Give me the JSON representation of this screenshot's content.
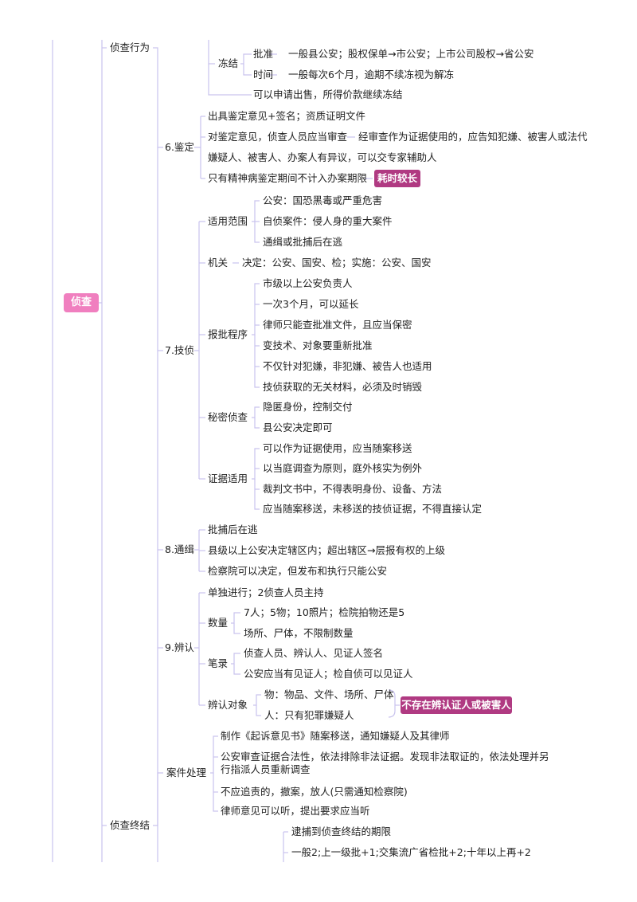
{
  "root": "侦查",
  "branches": {
    "zhencha_xingwei": "侦查行为",
    "zhencha_zhongjie": "侦查终结"
  },
  "dongjie": {
    "label": "冻结",
    "pizhun_label": "批准",
    "pizhun_text": "一般县公安；股权保单→市公安；上市公司股权→省公安",
    "shijian_label": "时间",
    "shijian_text": "一般每次6个月，逾期不续冻视为解冻",
    "chushou": "可以申请出售，所得价款继续冻结"
  },
  "jianding": {
    "label": "6.鉴定",
    "item1": "出具鉴定意见+签名；资质证明文件",
    "item2_head": "对鉴定意见，侦查人员应当审查",
    "item2_line1": "经审查作为证据使用的，应告知犯嫌、被害人或法代",
    "item2_line2": "嫌疑人、被害人、办案人有异议，可以交专家辅助人",
    "item3": "只有精神病鉴定期间不计入办案期限",
    "note": "耗时较长"
  },
  "jizhen": {
    "label": "7.技侦",
    "shiyong_label": "适用范围",
    "shiyong": [
      "公安：国恐黑毒或严重危害",
      "自侦案件：侵人身的重大案件",
      "通缉或批捕后在逃"
    ],
    "jiguan_label": "机关",
    "jiguan_text": "决定：公安、国安、检；实施：公安、国安",
    "baopi_label": "报批程序",
    "baopi": [
      "市级以上公安负责人",
      "一次3个月，可以延长",
      "律师只能查批准文件，且应当保密",
      "变技术、对象要重新批准",
      "不仅针对犯嫌，非犯嫌、被告人也适用",
      "技侦获取的无关材料，必须及时销毁"
    ],
    "mimi_label": "秘密侦查",
    "mimi": [
      "隐匿身份，控制交付",
      "县公安决定即可"
    ],
    "zhengju_label": "证据适用",
    "zhengju": [
      "可以作为证据使用，应当随案移送",
      "以当庭调查为原则，庭外核实为例外",
      "裁判文书中，不得表明身份、设备、方法",
      "应当随案移送，未移送的技侦证据，不得直接认定"
    ]
  },
  "tongji": {
    "label": "8.通缉",
    "items": [
      "批捕后在逃",
      "县级以上公安决定辖区内；超出辖区→层报有权的上级",
      "检察院可以决定，但发布和执行只能公安"
    ]
  },
  "bianren": {
    "label": "9.辨认",
    "item1": "单独进行；2侦查人员主持",
    "shuliang_label": "数量",
    "shuliang": [
      "7人；5物；10照片；检院拍物还是5",
      "场所、尸体，不限制数量"
    ],
    "bilu_label": "笔录",
    "bilu": [
      "侦查人员、辨认人、见证人签名",
      "公安应当有见证人；检自侦可以见证人"
    ],
    "duixiang_label": "辨认对象",
    "duixiang": [
      "物：物品、文件、场所、尸体",
      "人：只有犯罪嫌疑人"
    ],
    "note": "不存在辨认证人或被害人"
  },
  "anjian": {
    "label": "案件处理",
    "items": [
      "制作《起诉意见书》随案移送，通知嫌疑人及其律师",
      "公安审查证据合法性，依法排除非法证据。发现非法取证的，依法处理并另行指派人员重新调查",
      "不应追责的，撤案，放人(只需通知检察院)",
      "律师意见可以听，提出要求应当听"
    ]
  },
  "qixian": {
    "head": "逮捕到侦查终结的期限",
    "line1": "一般2;上一级批+1;交集流广省检批+2;十年以上再+2"
  }
}
